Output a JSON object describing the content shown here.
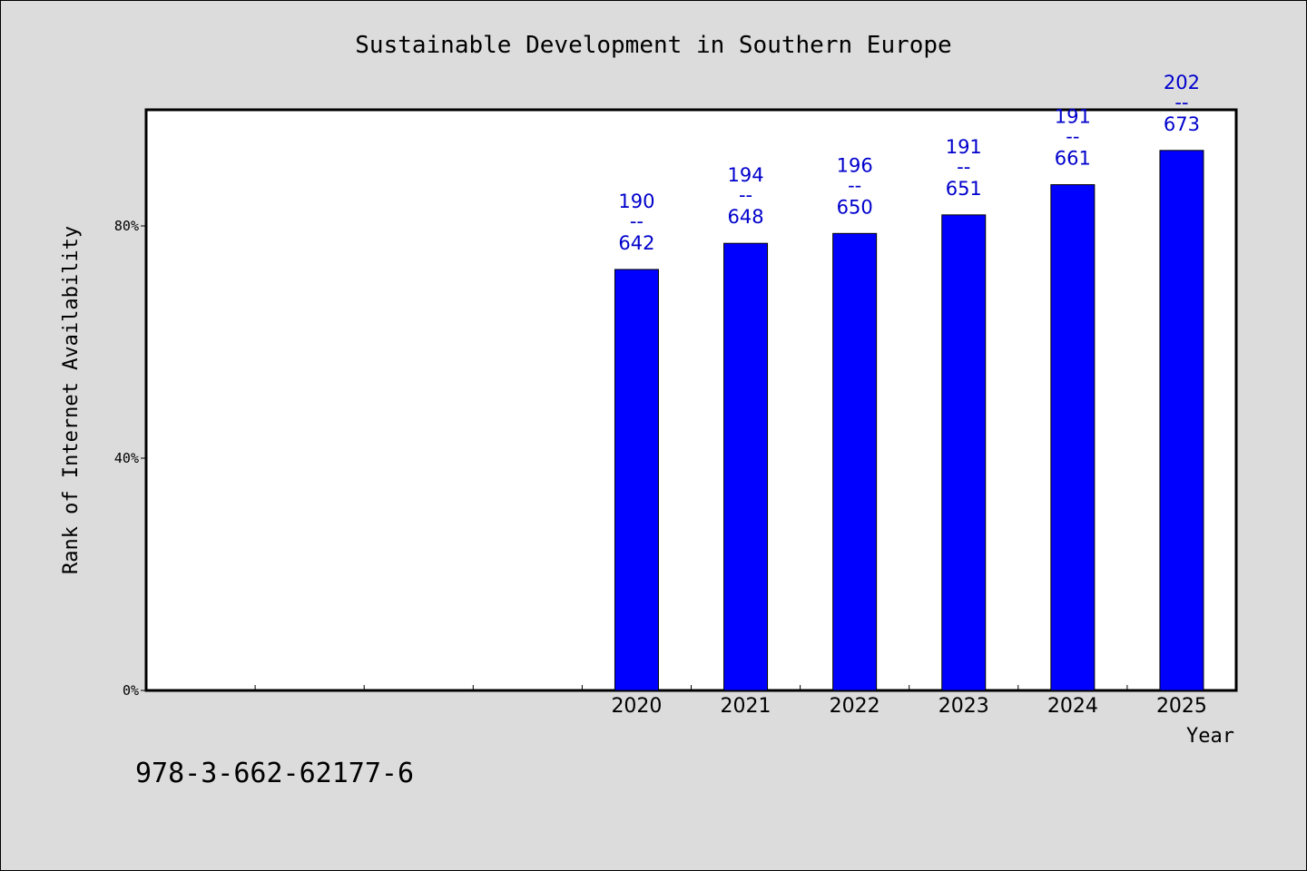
{
  "chart_data": {
    "type": "bar",
    "title": "Sustainable Development in Southern Europe",
    "xlabel": "Year",
    "ylabel": "Rank of Internet Availability",
    "categories": [
      "",
      "",
      "",
      "",
      "2020",
      "2021",
      "2022",
      "2023",
      "2024",
      "2025"
    ],
    "series": [
      {
        "values": [
          null,
          null,
          null,
          null,
          72.5,
          77.0,
          78.7,
          81.9,
          87.1,
          93.0
        ],
        "labels": [
          null,
          null,
          null,
          null,
          [
            "190",
            "--",
            "642"
          ],
          [
            "194",
            "--",
            "648"
          ],
          [
            "196",
            "--",
            "650"
          ],
          [
            "191",
            "--",
            "651"
          ],
          [
            "191",
            "--",
            "661"
          ],
          [
            "202",
            "--",
            "673"
          ]
        ]
      }
    ],
    "yticks": [
      {
        "value": 0,
        "label": "0%"
      },
      {
        "value": 40,
        "label": "40%"
      },
      {
        "value": 80,
        "label": "80%"
      }
    ],
    "ylim": [
      0,
      100
    ],
    "grid": false,
    "bar_color": "#0000ff",
    "label_color": "#0000cc"
  },
  "footer_text": "978-3-662-62177-6"
}
